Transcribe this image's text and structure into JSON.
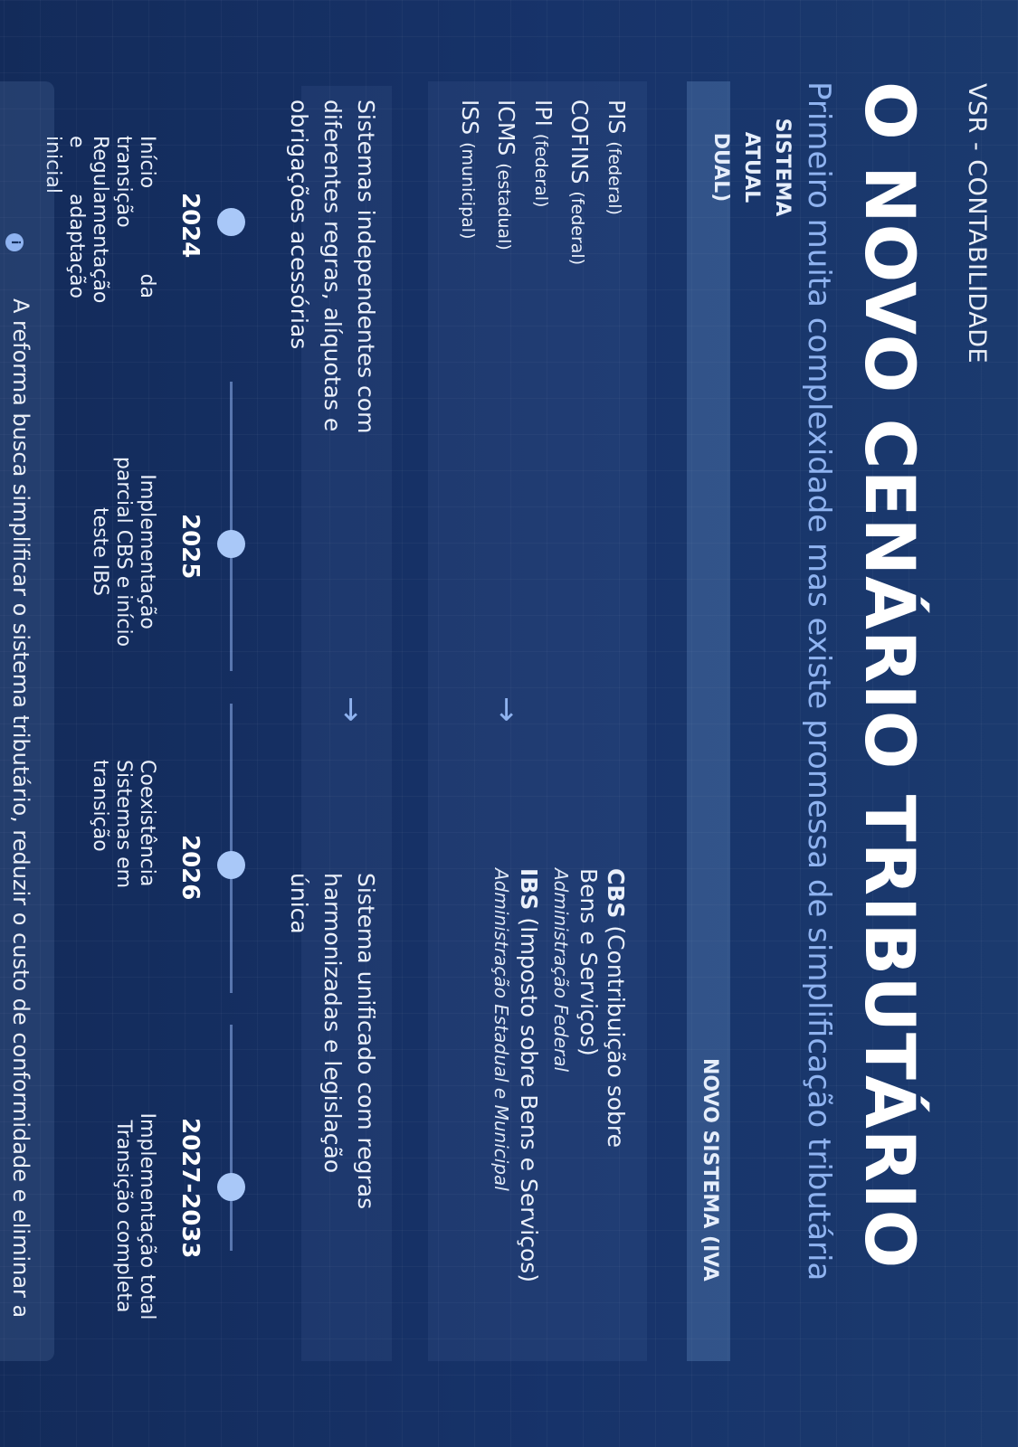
{
  "brand": "VSR - CONTABILIDADE",
  "title": "O NOVO CENÁRIO TRIBUTÁRIO",
  "subtitle": "Primeiro muita complexidade mas existe promessa de  simplificação tributária",
  "comparison": {
    "current_header": "SISTEMA ATUAL DUAL)",
    "new_header": "NOVO SISTEMA (IVA",
    "current_taxes": [
      {
        "name": "PIS",
        "scope": "(federal)"
      },
      {
        "name": "COFINS",
        "scope": "(federal)"
      },
      {
        "name": "IPI",
        "scope": "(federal)"
      },
      {
        "name": "ICMS",
        "scope": "(estadual)"
      },
      {
        "name": "ISS",
        "scope": "(municipal)"
      }
    ],
    "new_taxes": [
      {
        "name": "CBS",
        "full": "(Contribuição sobre Bens e Serviços)",
        "admin": "Administração Federal"
      },
      {
        "name": "IBS",
        "full": "(Imposto sobre Bens e Serviços)",
        "admin": "Administração Estadual e Municipal"
      }
    ],
    "current_description": "Sistemas independentes com diferentes regras, alíquotas e obrigações acessórias",
    "new_description": "Sistema unificado com regras harmonizadas e legislação única"
  },
  "timeline": [
    {
      "year": "2024",
      "description": "Início da transição Regulamentação e adaptação inicial"
    },
    {
      "year": "2025",
      "description": "Implementação parcial CBS e início teste IBS"
    },
    {
      "year": "2026",
      "description": "Coexistência Sistemas em transição"
    },
    {
      "year": "2027-2033",
      "description": "Implementação total Transição completa"
    }
  ],
  "footer": {
    "icon": "info-icon",
    "text": "A reforma busca simplificar o sistema tributário, reduzir o custo de conformidade e eliminar a"
  },
  "colors": {
    "background": "#17336a",
    "accent": "#8fb3f0",
    "dot": "#a9c8f8"
  }
}
